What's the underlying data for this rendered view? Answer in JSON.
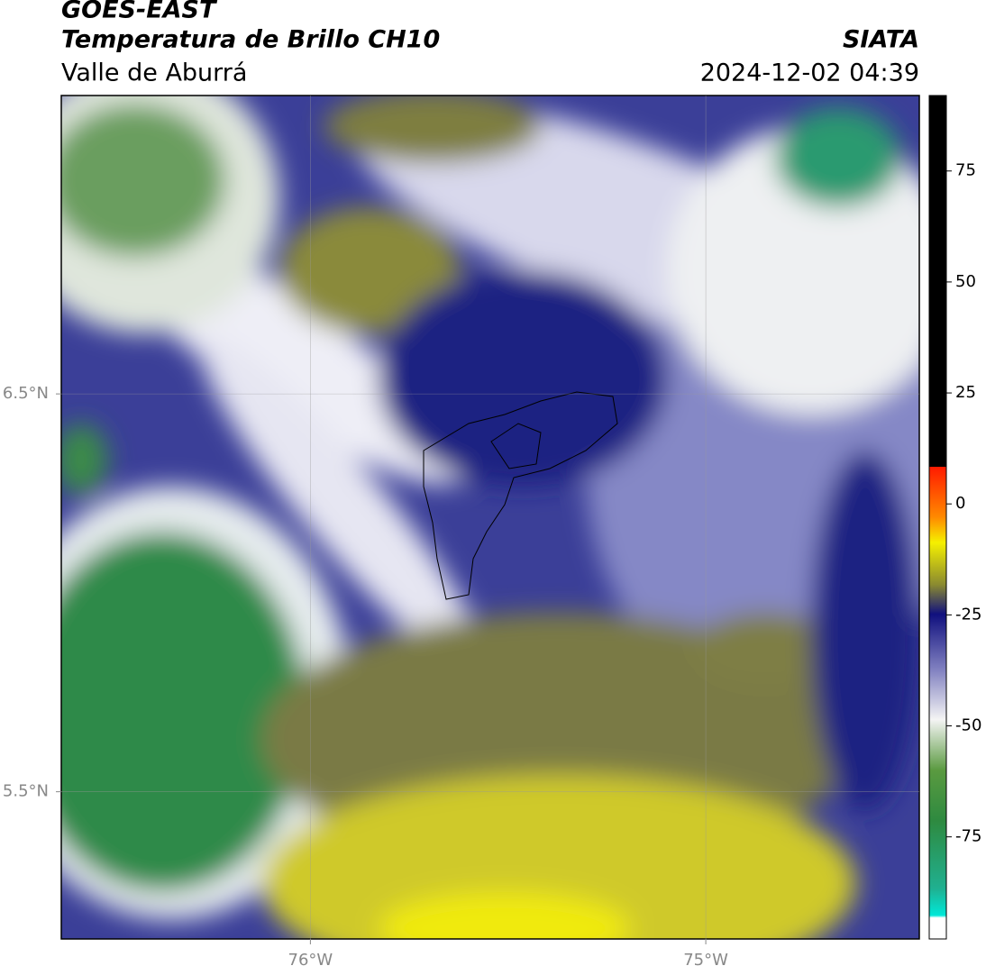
{
  "header": {
    "title": "GOES-EAST",
    "subtitle": "Temperatura de Brillo CH10",
    "region": "Valle de Aburrá",
    "source": "SIATA",
    "datetime": "2024-12-02 04:39"
  },
  "map": {
    "xlim": [
      -76.63,
      -74.46
    ],
    "ylim": [
      5.13,
      7.25
    ],
    "xticks": [
      {
        "value": -76,
        "label": "76°W"
      },
      {
        "value": -75,
        "label": "75°W"
      }
    ],
    "yticks": [
      {
        "value": 6.5,
        "label": "6.5°N"
      },
      {
        "value": 5.5,
        "label": "5.5°N"
      }
    ],
    "grid": true
  },
  "colorbar": {
    "lim": [
      -98,
      92
    ],
    "ticks": [
      75,
      50,
      25,
      0,
      -25,
      -50,
      -75
    ]
  }
}
